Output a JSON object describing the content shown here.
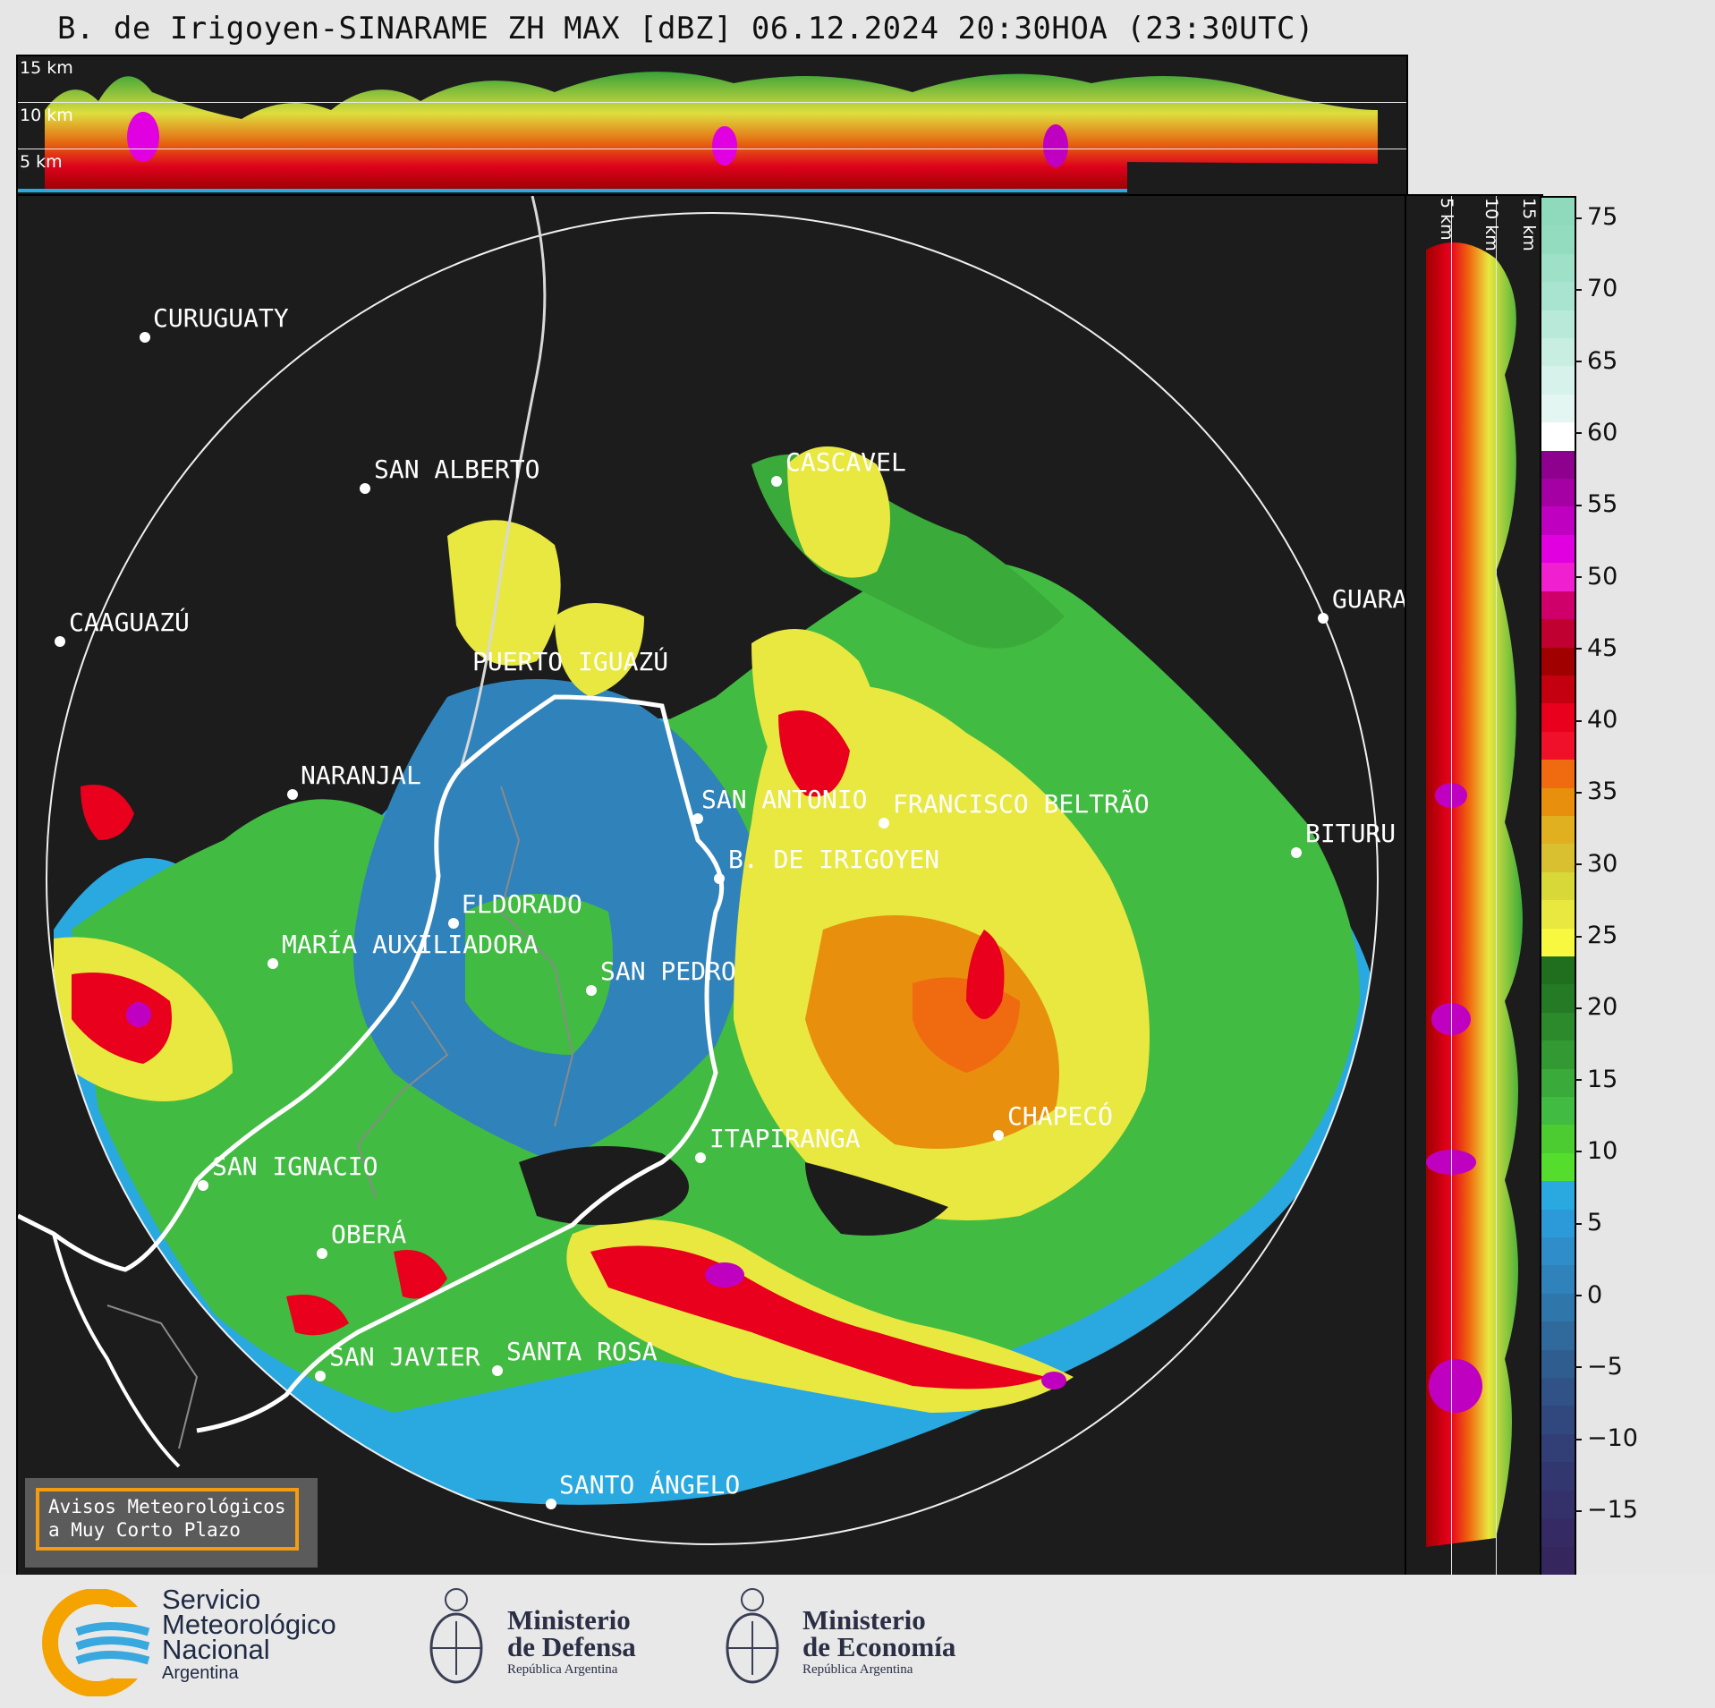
{
  "title": "B. de Irigoyen-SINARAME ZH MAX [dBZ] 06.12.2024 20:30HOA (23:30UTC)",
  "top_strip": {
    "altitude_labels": [
      "15 km",
      "10 km",
      "5 km"
    ]
  },
  "side_strip": {
    "altitude_labels": [
      "5 km",
      "10 km",
      "15 km"
    ]
  },
  "colorbar": {
    "unit": "dBZ",
    "ticks": [
      "75",
      "70",
      "65",
      "60",
      "55",
      "50",
      "45",
      "40",
      "35",
      "30",
      "25",
      "20",
      "15",
      "10",
      "5",
      "0",
      "−5",
      "−10",
      "−15"
    ],
    "colors_top_to_bottom": [
      "#8fd9bd",
      "#93dcc0",
      "#9fe0c9",
      "#a9e4d0",
      "#b9e9d9",
      "#c8eee2",
      "#d6f2ea",
      "#e4f6f1",
      "#ffffff",
      "#8e008e",
      "#a400a4",
      "#c000c0",
      "#e000e0",
      "#f020d0",
      "#d0006a",
      "#c00030",
      "#a00000",
      "#c40010",
      "#e8001c",
      "#f0102a",
      "#f06a10",
      "#e8900e",
      "#e0b020",
      "#d8c030",
      "#d8d838",
      "#e8e840",
      "#f8f840",
      "#1f6f1f",
      "#257a25",
      "#2c8a2c",
      "#339933",
      "#3aaa3a",
      "#42bb42",
      "#4ccc30",
      "#54dd2c",
      "#29a9e0",
      "#2c9ad8",
      "#2f8ec9",
      "#2f82ba",
      "#2f76ab",
      "#30699c",
      "#305d8f",
      "#305286",
      "#31487e",
      "#323f77",
      "#333770",
      "#343069",
      "#352a63",
      "#36265e"
    ]
  },
  "cities": [
    {
      "name": "CURUGUATY"
    },
    {
      "name": "SAN ALBERTO"
    },
    {
      "name": "CASCAVEL"
    },
    {
      "name": "CAAGUAZÚ"
    },
    {
      "name": "GUARA"
    },
    {
      "name": "PUERTO IGUAZÚ"
    },
    {
      "name": "NARANJAL"
    },
    {
      "name": "SAN ANTONIO"
    },
    {
      "name": "FRANCISCO BELTRÃO"
    },
    {
      "name": "BITURU"
    },
    {
      "name": "B. DE IRIGOYEN"
    },
    {
      "name": "ELDORADO"
    },
    {
      "name": "MARÍA AUXILIADORA"
    },
    {
      "name": "SAN PEDRO"
    },
    {
      "name": "CHAPECÓ"
    },
    {
      "name": "ITAPIRANGA"
    },
    {
      "name": "SAN IGNACIO"
    },
    {
      "name": "OBERÁ"
    },
    {
      "name": "SAN JAVIER"
    },
    {
      "name": "SANTA ROSA"
    },
    {
      "name": "SANTO ÁNGELO"
    }
  ],
  "aviso": {
    "line1": "Avisos Meteorológicos",
    "line2": "a Muy Corto Plazo"
  },
  "logos": {
    "smn_line1": "Servicio",
    "smn_line2": "Meteorológico",
    "smn_line3": "Nacional",
    "smn_line4": "Argentina",
    "defensa_name1": "Ministerio",
    "defensa_name2": "de Defensa",
    "defensa_sub": "República Argentina",
    "economia_name1": "Ministerio",
    "economia_name2": "de Economía",
    "economia_sub": "República Argentina"
  }
}
